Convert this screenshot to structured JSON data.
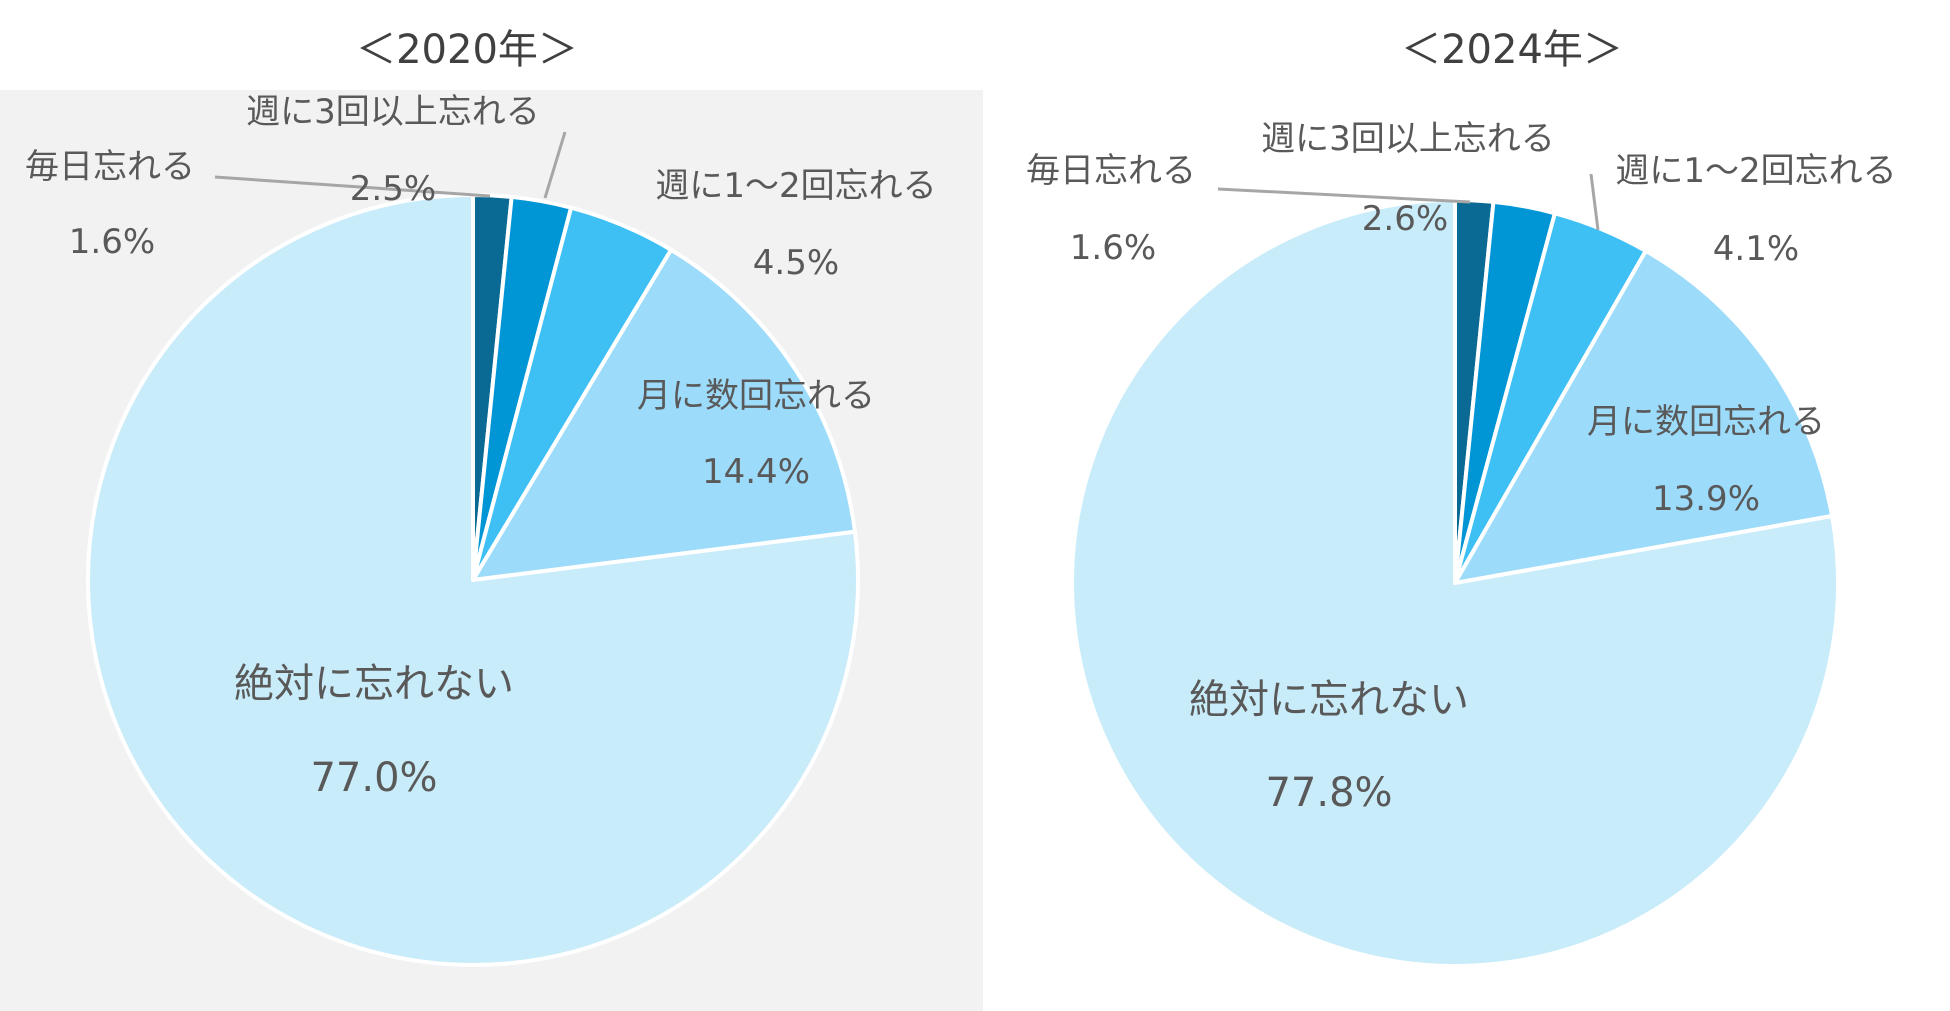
{
  "chart_data": [
    {
      "type": "pie",
      "title": "＜2020年＞",
      "categories": [
        "毎日忘れる",
        "週に3回以上忘れる",
        "週に1～2回忘れる",
        "月に数回忘れる",
        "絶対に忘れない"
      ],
      "values": [
        1.6,
        2.5,
        4.5,
        14.4,
        77.0
      ],
      "value_labels": [
        "1.6%",
        "2.5%",
        "4.5%",
        "14.4%",
        "77.0%"
      ],
      "colors": [
        "#0b6a94",
        "#0096d6",
        "#3ec0f5",
        "#9ddbfa",
        "#c9ecfa"
      ],
      "background": "#f2f2f2"
    },
    {
      "type": "pie",
      "title": "＜2024年＞",
      "categories": [
        "毎日忘れる",
        "週に3回以上忘れる",
        "週に1～2回忘れる",
        "月に数回忘れる",
        "絶対に忘れない"
      ],
      "values": [
        1.6,
        2.6,
        4.1,
        13.9,
        77.8
      ],
      "value_labels": [
        "1.6%",
        "2.6%",
        "4.1%",
        "13.9%",
        "77.8%"
      ],
      "colors": [
        "#0b6a94",
        "#0096d6",
        "#3ec0f5",
        "#9ddbfa",
        "#c9ecfa"
      ],
      "background": "#ffffff"
    }
  ]
}
